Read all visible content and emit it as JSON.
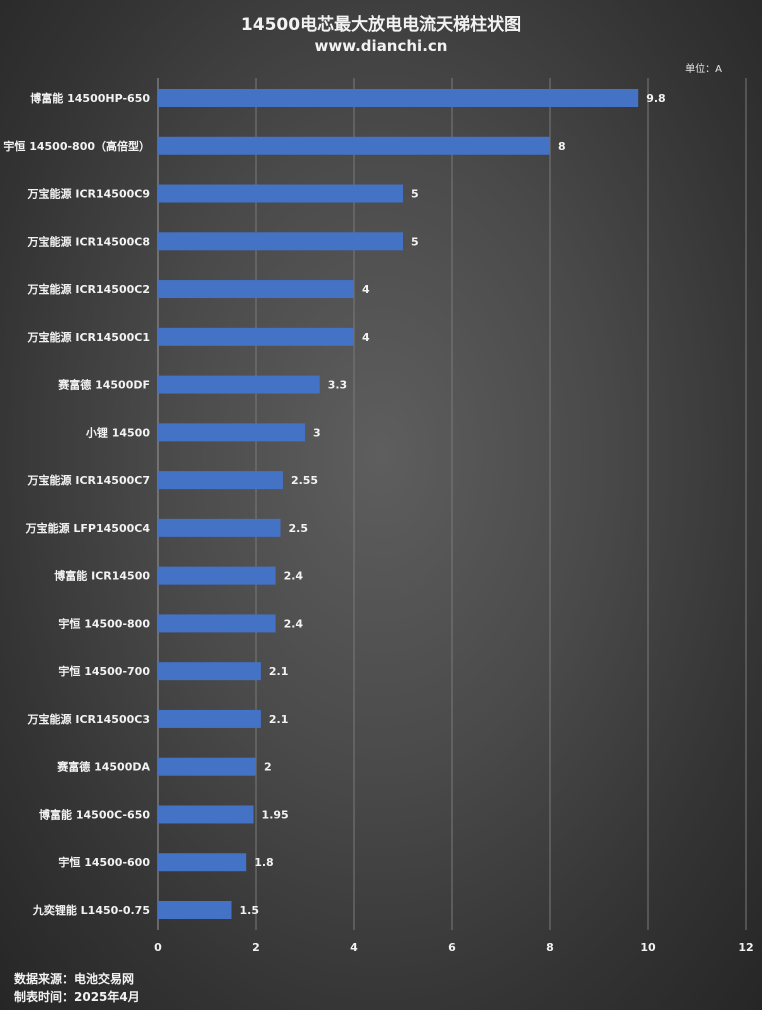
{
  "header": {
    "title": "14500电芯最大放电电流天梯柱状图",
    "subtitle": "www.dianchi.cn",
    "unit": "单位：A"
  },
  "footer": {
    "source": "数据来源：电池交易网",
    "date": "制表时间：2025年4月"
  },
  "colors": {
    "bar": "#4472C4",
    "text": "#f2f2f2",
    "grid": "#7a7a7a"
  },
  "chart_data": {
    "type": "bar",
    "orientation": "horizontal",
    "title": "14500电芯最大放电电流天梯柱状图",
    "subtitle": "www.dianchi.cn",
    "unit": "单位：A",
    "categories": [
      "博富能 14500HP-650",
      "宇恒 14500-800（高倍型）",
      "万宝能源 ICR14500C9",
      "万宝能源 ICR14500C8",
      "万宝能源 ICR14500C2",
      "万宝能源 ICR14500C1",
      "赛富德 14500DF",
      "小锂 14500",
      "万宝能源 ICR14500C7",
      "万宝能源 LFP14500C4",
      "博富能 ICR14500",
      "宇恒 14500-800",
      "宇恒 14500-700",
      "万宝能源 ICR14500C3",
      "赛富德 14500DA",
      "博富能 14500C-650",
      "宇恒 14500-600",
      "九奕锂能 L1450-0.75"
    ],
    "values": [
      9.8,
      8,
      5,
      5,
      4,
      4,
      3.3,
      3,
      2.55,
      2.5,
      2.4,
      2.4,
      2.1,
      2.1,
      2,
      1.95,
      1.8,
      1.5
    ],
    "data_labels": [
      "9.8",
      "8",
      "5",
      "5",
      "4",
      "4",
      "3.3",
      "3",
      "2.55",
      "2.5",
      "2.4",
      "2.4",
      "2.1",
      "2.1",
      "2",
      "1.95",
      "1.8",
      "1.5"
    ],
    "xlim": [
      0,
      12
    ],
    "xticks": [
      "0",
      "2",
      "4",
      "6",
      "8",
      "10",
      "12"
    ],
    "xtick_values": [
      0,
      2,
      4,
      6,
      8,
      10,
      12
    ],
    "grid": true,
    "legend": "none"
  }
}
